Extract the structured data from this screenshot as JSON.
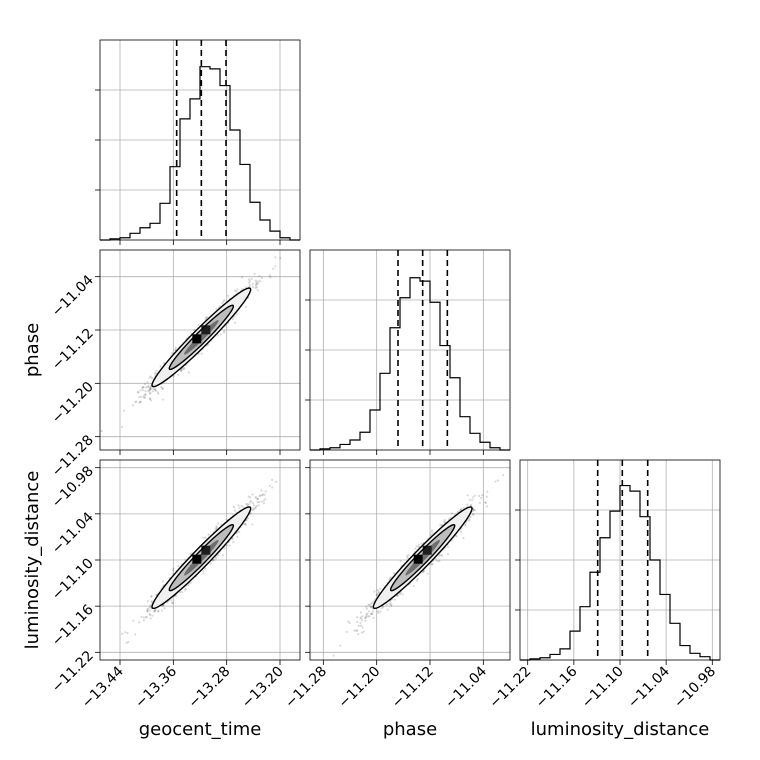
{
  "chart_data": {
    "type": "corner",
    "parameters": [
      "geocent_time",
      "phase",
      "luminosity_distance"
    ],
    "grid": true,
    "axes": {
      "geocent_time": {
        "range": [
          -13.47,
          -13.17
        ],
        "ticks": [
          -13.44,
          -13.36,
          -13.28,
          -13.2
        ],
        "tick_labels": [
          "−13.44",
          "−13.36",
          "−13.28",
          "−13.20"
        ]
      },
      "phase": {
        "range": [
          -11.3,
          -11.0
        ],
        "ticks": [
          -11.28,
          -11.2,
          -11.12,
          -11.04
        ],
        "tick_labels": [
          "−11.28",
          "−11.20",
          "−11.12",
          "−11.04"
        ]
      },
      "luminosity_distance": {
        "range": [
          -11.23,
          -10.97
        ],
        "ticks": [
          -11.22,
          -11.16,
          -11.1,
          -11.04,
          -10.98
        ],
        "tick_labels": [
          "−11.22",
          "−11.16",
          "−11.10",
          "−11.04",
          "−10.98"
        ]
      }
    },
    "histograms": {
      "geocent_time": {
        "bin_edges": [
          -13.47,
          -13.455,
          -13.44,
          -13.425,
          -13.41,
          -13.395,
          -13.38,
          -13.365,
          -13.35,
          -13.335,
          -13.32,
          -13.305,
          -13.29,
          -13.275,
          -13.26,
          -13.245,
          -13.23,
          -13.215,
          -13.2,
          -13.185,
          -13.17
        ],
        "counts": [
          0,
          1,
          2,
          6,
          11,
          15,
          33,
          66,
          109,
          127,
          156,
          154,
          139,
          99,
          68,
          34,
          18,
          8,
          2,
          0
        ],
        "ymax": 180,
        "quantiles": [
          -13.355,
          -13.318,
          -13.281
        ]
      },
      "phase": {
        "bin_edges": [
          -11.3,
          -11.285,
          -11.27,
          -11.255,
          -11.24,
          -11.225,
          -11.21,
          -11.195,
          -11.18,
          -11.165,
          -11.15,
          -11.135,
          -11.12,
          -11.105,
          -11.09,
          -11.075,
          -11.06,
          -11.045,
          -11.03,
          -11.015,
          -11.0
        ],
        "counts": [
          0,
          1,
          2,
          5,
          9,
          16,
          36,
          69,
          110,
          137,
          155,
          152,
          133,
          94,
          65,
          30,
          15,
          7,
          2,
          0
        ],
        "ymax": 180,
        "quantiles": [
          -11.168,
          -11.131,
          -11.094
        ]
      },
      "luminosity_distance": {
        "bin_edges": [
          -11.23,
          -11.217,
          -11.204,
          -11.191,
          -11.178,
          -11.165,
          -11.152,
          -11.139,
          -11.126,
          -11.113,
          -11.1,
          -11.087,
          -11.074,
          -11.061,
          -11.048,
          -11.035,
          -11.022,
          -11.009,
          -10.996,
          -10.983,
          -10.97
        ],
        "counts": [
          0,
          1,
          2,
          5,
          10,
          26,
          48,
          79,
          110,
          134,
          157,
          152,
          129,
          90,
          59,
          33,
          13,
          6,
          3,
          0
        ],
        "ymax": 180,
        "quantiles": [
          -11.129,
          -11.097,
          -11.064
        ]
      }
    },
    "joint": [
      {
        "x": "geocent_time",
        "y": "phase",
        "mean": [
          -13.318,
          -11.131
        ],
        "sd": [
          0.037,
          0.037
        ],
        "corr": 0.97,
        "n_samples": 1400
      },
      {
        "x": "geocent_time",
        "y": "luminosity_distance",
        "mean": [
          -13.318,
          -11.097
        ],
        "sd": [
          0.037,
          0.033
        ],
        "corr": 0.97,
        "n_samples": 1400
      },
      {
        "x": "phase",
        "y": "luminosity_distance",
        "mean": [
          -11.131,
          -11.097
        ],
        "sd": [
          0.037,
          0.033
        ],
        "corr": 0.97,
        "n_samples": 1400
      }
    ]
  }
}
